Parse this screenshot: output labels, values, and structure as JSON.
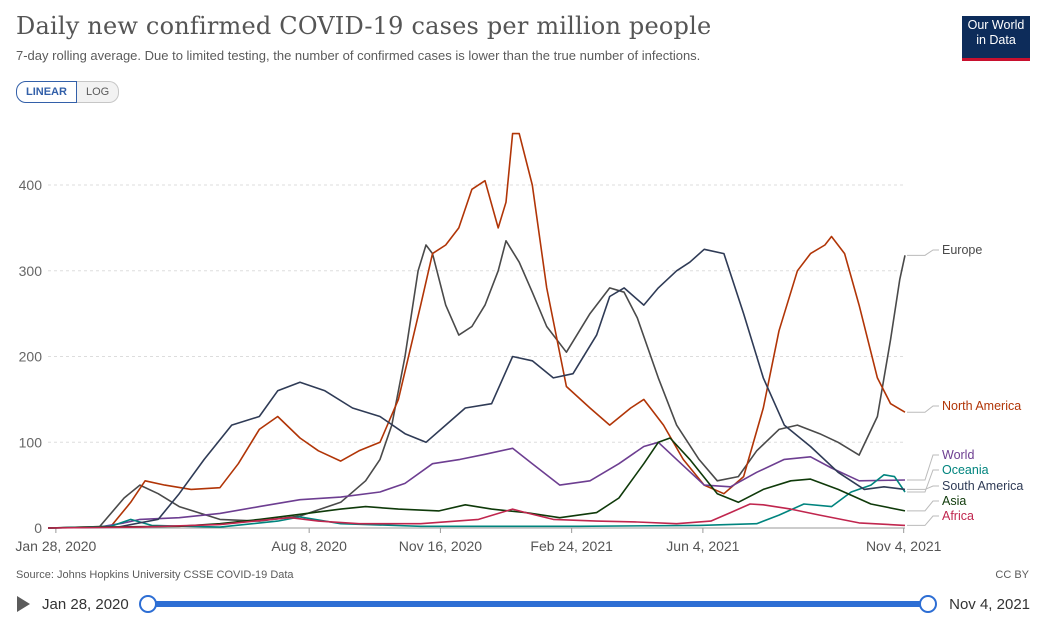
{
  "header": {
    "title": "Daily new confirmed COVID-19 cases per million people",
    "subtitle": "7-day rolling average. Due to limited testing, the number of confirmed cases is lower than the true number of infections.",
    "logo_line1": "Our World",
    "logo_line2": "in Data"
  },
  "scale_toggle": {
    "linear": "LINEAR",
    "log": "LOG",
    "selected": "LINEAR"
  },
  "footer": {
    "source": "Source: Johns Hopkins University CSSE COVID-19 Data",
    "license": "CC BY"
  },
  "timeline": {
    "start": "Jan 28, 2020",
    "end": "Nov 4, 2021",
    "range_selected": [
      0,
      1
    ]
  },
  "chart_data": {
    "type": "line",
    "x_axis_type": "date",
    "x_ticks": [
      "Jan 28, 2020",
      "Aug 8, 2020",
      "Nov 16, 2020",
      "Feb 24, 2021",
      "Jun 4, 2021",
      "Nov 4, 2021"
    ],
    "y_ticks": [
      0,
      100,
      200,
      300,
      400
    ],
    "ylim": [
      0,
      470
    ],
    "grid": "horizontal dashed",
    "legend": "right end labels",
    "series": [
      {
        "name": "Europe",
        "color": "#4a4a4a",
        "points": [
          [
            "2020-01-22",
            0
          ],
          [
            "2020-03-01",
            1
          ],
          [
            "2020-03-20",
            35
          ],
          [
            "2020-04-01",
            50
          ],
          [
            "2020-04-15",
            40
          ],
          [
            "2020-05-01",
            25
          ],
          [
            "2020-06-01",
            10
          ],
          [
            "2020-07-01",
            8
          ],
          [
            "2020-08-01",
            14
          ],
          [
            "2020-09-01",
            30
          ],
          [
            "2020-09-20",
            55
          ],
          [
            "2020-10-01",
            80
          ],
          [
            "2020-10-10",
            120
          ],
          [
            "2020-10-20",
            200
          ],
          [
            "2020-10-30",
            300
          ],
          [
            "2020-11-05",
            330
          ],
          [
            "2020-11-10",
            320
          ],
          [
            "2020-11-20",
            260
          ],
          [
            "2020-11-30",
            225
          ],
          [
            "2020-12-10",
            235
          ],
          [
            "2020-12-20",
            260
          ],
          [
            "2020-12-30",
            300
          ],
          [
            "2021-01-05",
            335
          ],
          [
            "2021-01-15",
            310
          ],
          [
            "2021-01-25",
            275
          ],
          [
            "2021-02-05",
            235
          ],
          [
            "2021-02-20",
            205
          ],
          [
            "2021-03-10",
            250
          ],
          [
            "2021-03-25",
            280
          ],
          [
            "2021-04-05",
            275
          ],
          [
            "2021-04-15",
            245
          ],
          [
            "2021-05-01",
            175
          ],
          [
            "2021-05-15",
            120
          ],
          [
            "2021-06-01",
            80
          ],
          [
            "2021-06-15",
            55
          ],
          [
            "2021-07-01",
            60
          ],
          [
            "2021-07-15",
            90
          ],
          [
            "2021-08-01",
            115
          ],
          [
            "2021-08-15",
            120
          ],
          [
            "2021-09-01",
            110
          ],
          [
            "2021-09-15",
            100
          ],
          [
            "2021-10-01",
            85
          ],
          [
            "2021-10-15",
            130
          ],
          [
            "2021-10-25",
            220
          ],
          [
            "2021-11-01",
            290
          ],
          [
            "2021-11-05",
            318
          ]
        ]
      },
      {
        "name": "North America",
        "color": "#b13507",
        "points": [
          [
            "2020-01-22",
            0
          ],
          [
            "2020-03-10",
            2
          ],
          [
            "2020-03-25",
            30
          ],
          [
            "2020-04-05",
            55
          ],
          [
            "2020-04-20",
            50
          ],
          [
            "2020-05-10",
            45
          ],
          [
            "2020-06-01",
            47
          ],
          [
            "2020-06-15",
            75
          ],
          [
            "2020-07-01",
            115
          ],
          [
            "2020-07-15",
            130
          ],
          [
            "2020-08-01",
            105
          ],
          [
            "2020-08-15",
            90
          ],
          [
            "2020-09-01",
            78
          ],
          [
            "2020-09-15",
            90
          ],
          [
            "2020-10-01",
            100
          ],
          [
            "2020-10-15",
            150
          ],
          [
            "2020-11-01",
            260
          ],
          [
            "2020-11-10",
            320
          ],
          [
            "2020-11-20",
            330
          ],
          [
            "2020-11-30",
            350
          ],
          [
            "2020-12-10",
            395
          ],
          [
            "2020-12-20",
            405
          ],
          [
            "2020-12-30",
            350
          ],
          [
            "2021-01-05",
            380
          ],
          [
            "2021-01-10",
            460
          ],
          [
            "2021-01-15",
            460
          ],
          [
            "2021-01-25",
            400
          ],
          [
            "2021-02-05",
            280
          ],
          [
            "2021-02-20",
            165
          ],
          [
            "2021-03-10",
            140
          ],
          [
            "2021-03-25",
            120
          ],
          [
            "2021-04-10",
            140
          ],
          [
            "2021-04-20",
            150
          ],
          [
            "2021-05-05",
            120
          ],
          [
            "2021-05-20",
            80
          ],
          [
            "2021-06-05",
            50
          ],
          [
            "2021-06-20",
            40
          ],
          [
            "2021-07-05",
            60
          ],
          [
            "2021-07-20",
            140
          ],
          [
            "2021-08-01",
            230
          ],
          [
            "2021-08-15",
            300
          ],
          [
            "2021-08-25",
            320
          ],
          [
            "2021-09-05",
            330
          ],
          [
            "2021-09-10",
            340
          ],
          [
            "2021-09-20",
            320
          ],
          [
            "2021-10-01",
            260
          ],
          [
            "2021-10-15",
            175
          ],
          [
            "2021-10-25",
            145
          ],
          [
            "2021-11-05",
            135
          ]
        ]
      },
      {
        "name": "World",
        "color": "#6d3e91",
        "points": [
          [
            "2020-01-22",
            0
          ],
          [
            "2020-03-01",
            1
          ],
          [
            "2020-03-20",
            6
          ],
          [
            "2020-04-01",
            10
          ],
          [
            "2020-05-01",
            12
          ],
          [
            "2020-06-01",
            17
          ],
          [
            "2020-07-01",
            25
          ],
          [
            "2020-08-01",
            33
          ],
          [
            "2020-09-01",
            36
          ],
          [
            "2020-10-01",
            42
          ],
          [
            "2020-10-20",
            52
          ],
          [
            "2020-11-10",
            75
          ],
          [
            "2020-12-01",
            80
          ],
          [
            "2020-12-20",
            86
          ],
          [
            "2021-01-10",
            93
          ],
          [
            "2021-01-25",
            75
          ],
          [
            "2021-02-15",
            50
          ],
          [
            "2021-03-10",
            55
          ],
          [
            "2021-04-01",
            75
          ],
          [
            "2021-04-20",
            95
          ],
          [
            "2021-05-01",
            100
          ],
          [
            "2021-05-15",
            80
          ],
          [
            "2021-06-05",
            50
          ],
          [
            "2021-06-25",
            48
          ],
          [
            "2021-07-15",
            65
          ],
          [
            "2021-08-05",
            80
          ],
          [
            "2021-08-25",
            83
          ],
          [
            "2021-09-10",
            70
          ],
          [
            "2021-10-01",
            55
          ],
          [
            "2021-11-05",
            56
          ]
        ]
      },
      {
        "name": "Oceania",
        "color": "#00847e",
        "points": [
          [
            "2020-01-22",
            0
          ],
          [
            "2020-03-10",
            2
          ],
          [
            "2020-03-25",
            10
          ],
          [
            "2020-04-10",
            3
          ],
          [
            "2020-06-01",
            1
          ],
          [
            "2020-07-15",
            8
          ],
          [
            "2020-08-01",
            13
          ],
          [
            "2020-09-01",
            5
          ],
          [
            "2020-11-01",
            2
          ],
          [
            "2021-03-01",
            2
          ],
          [
            "2021-06-01",
            3
          ],
          [
            "2021-07-15",
            5
          ],
          [
            "2021-08-01",
            15
          ],
          [
            "2021-08-20",
            28
          ],
          [
            "2021-09-10",
            25
          ],
          [
            "2021-09-25",
            42
          ],
          [
            "2021-10-10",
            50
          ],
          [
            "2021-10-20",
            62
          ],
          [
            "2021-10-28",
            60
          ],
          [
            "2021-11-05",
            42
          ]
        ]
      },
      {
        "name": "South America",
        "color": "#2f3b56",
        "points": [
          [
            "2020-01-22",
            0
          ],
          [
            "2020-03-15",
            1
          ],
          [
            "2020-04-15",
            10
          ],
          [
            "2020-05-01",
            40
          ],
          [
            "2020-05-20",
            80
          ],
          [
            "2020-06-10",
            120
          ],
          [
            "2020-07-01",
            130
          ],
          [
            "2020-07-15",
            160
          ],
          [
            "2020-08-01",
            170
          ],
          [
            "2020-08-20",
            160
          ],
          [
            "2020-09-10",
            140
          ],
          [
            "2020-10-01",
            130
          ],
          [
            "2020-10-20",
            110
          ],
          [
            "2020-11-05",
            100
          ],
          [
            "2020-11-20",
            120
          ],
          [
            "2020-12-05",
            140
          ],
          [
            "2020-12-25",
            145
          ],
          [
            "2021-01-10",
            200
          ],
          [
            "2021-01-25",
            195
          ],
          [
            "2021-02-10",
            175
          ],
          [
            "2021-02-25",
            180
          ],
          [
            "2021-03-15",
            225
          ],
          [
            "2021-03-25",
            270
          ],
          [
            "2021-04-05",
            280
          ],
          [
            "2021-04-20",
            260
          ],
          [
            "2021-05-01",
            280
          ],
          [
            "2021-05-15",
            300
          ],
          [
            "2021-05-25",
            310
          ],
          [
            "2021-06-05",
            325
          ],
          [
            "2021-06-20",
            320
          ],
          [
            "2021-07-05",
            250
          ],
          [
            "2021-07-20",
            175
          ],
          [
            "2021-08-05",
            120
          ],
          [
            "2021-08-25",
            95
          ],
          [
            "2021-09-15",
            65
          ],
          [
            "2021-10-05",
            45
          ],
          [
            "2021-10-20",
            48
          ],
          [
            "2021-11-05",
            45
          ]
        ]
      },
      {
        "name": "Asia",
        "color": "#0f3a0a",
        "points": [
          [
            "2020-01-22",
            0
          ],
          [
            "2020-03-01",
            1
          ],
          [
            "2020-05-01",
            2
          ],
          [
            "2020-06-01",
            5
          ],
          [
            "2020-07-01",
            10
          ],
          [
            "2020-08-01",
            16
          ],
          [
            "2020-09-01",
            22
          ],
          [
            "2020-09-20",
            25
          ],
          [
            "2020-10-15",
            22
          ],
          [
            "2020-11-15",
            20
          ],
          [
            "2020-12-05",
            27
          ],
          [
            "2020-12-25",
            22
          ],
          [
            "2021-01-20",
            18
          ],
          [
            "2021-02-15",
            12
          ],
          [
            "2021-03-15",
            18
          ],
          [
            "2021-04-01",
            35
          ],
          [
            "2021-04-20",
            75
          ],
          [
            "2021-05-01",
            100
          ],
          [
            "2021-05-10",
            105
          ],
          [
            "2021-05-25",
            80
          ],
          [
            "2021-06-15",
            40
          ],
          [
            "2021-07-01",
            30
          ],
          [
            "2021-07-20",
            45
          ],
          [
            "2021-08-10",
            55
          ],
          [
            "2021-08-25",
            57
          ],
          [
            "2021-09-15",
            45
          ],
          [
            "2021-10-10",
            28
          ],
          [
            "2021-11-05",
            20
          ]
        ]
      },
      {
        "name": "Africa",
        "color": "#c0264e",
        "points": [
          [
            "2020-01-22",
            0
          ],
          [
            "2020-04-01",
            1
          ],
          [
            "2020-06-01",
            4
          ],
          [
            "2020-07-10",
            10
          ],
          [
            "2020-07-25",
            12
          ],
          [
            "2020-08-15",
            8
          ],
          [
            "2020-09-15",
            5
          ],
          [
            "2020-11-01",
            5
          ],
          [
            "2020-12-15",
            10
          ],
          [
            "2021-01-10",
            22
          ],
          [
            "2021-01-20",
            18
          ],
          [
            "2021-02-10",
            10
          ],
          [
            "2021-03-15",
            8
          ],
          [
            "2021-04-15",
            7
          ],
          [
            "2021-05-15",
            5
          ],
          [
            "2021-06-10",
            8
          ],
          [
            "2021-06-25",
            18
          ],
          [
            "2021-07-10",
            28
          ],
          [
            "2021-07-20",
            27
          ],
          [
            "2021-08-10",
            22
          ],
          [
            "2021-09-01",
            15
          ],
          [
            "2021-10-01",
            6
          ],
          [
            "2021-11-05",
            3
          ]
        ]
      }
    ]
  }
}
